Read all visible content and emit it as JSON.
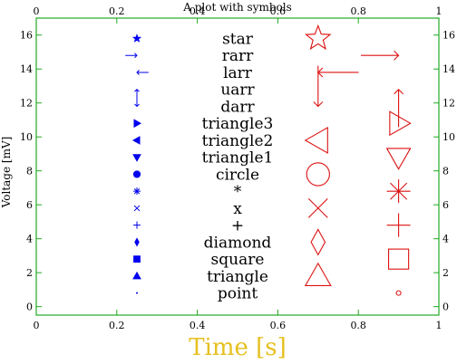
{
  "chart_data": {
    "type": "scatter",
    "title": "A plot with symbols",
    "xlabel": "Time [s]",
    "ylabel": "Voltage [mV]",
    "xlabel_color": "#e6c020",
    "axis_color": "#22aa22",
    "small_marker_color": "#0000ee",
    "large_marker_color": "#dd1111",
    "xlim": [
      0,
      1
    ],
    "ylim": [
      -0.5,
      17
    ],
    "xticks": [
      0,
      0.2,
      0.4,
      0.6,
      0.8,
      1
    ],
    "xtick_labels": [
      "0",
      "0.2",
      "0.4",
      "0.6",
      "0.8",
      "1"
    ],
    "yticks": [
      0,
      2,
      4,
      6,
      8,
      10,
      12,
      14,
      16
    ],
    "ytick_labels": [
      "0",
      "2",
      "4",
      "6",
      "8",
      "10",
      "12",
      "14",
      "16"
    ],
    "symbols": [
      {
        "name": "point",
        "y": 0.8
      },
      {
        "name": "triangle",
        "y": 1.8
      },
      {
        "name": "square",
        "y": 2.8
      },
      {
        "name": "diamond",
        "y": 3.8
      },
      {
        "name": "+",
        "y": 4.8
      },
      {
        "name": "x",
        "y": 5.8
      },
      {
        "name": "*",
        "y": 6.8
      },
      {
        "name": "circle",
        "y": 7.8
      },
      {
        "name": "triangle1",
        "y": 8.8
      },
      {
        "name": "triangle2",
        "y": 9.8
      },
      {
        "name": "triangle3",
        "y": 10.8
      },
      {
        "name": "darr",
        "y": 11.8
      },
      {
        "name": "uarr",
        "y": 12.8
      },
      {
        "name": "larr",
        "y": 13.8
      },
      {
        "name": "rarr",
        "y": 14.8
      },
      {
        "name": "star",
        "y": 15.8
      }
    ],
    "x_small": 0.25,
    "x_label": 0.5,
    "large_left_x": 0.7,
    "large_left_symbols": [
      "triangle",
      "diamond",
      "x",
      "circle",
      "triangle2",
      "darr",
      "larr",
      "star"
    ],
    "large_right_x": 0.9,
    "large_right_symbols": [
      "point",
      "square",
      "+",
      "*",
      "triangle1",
      "triangle3",
      "uarr",
      "rarr"
    ]
  }
}
